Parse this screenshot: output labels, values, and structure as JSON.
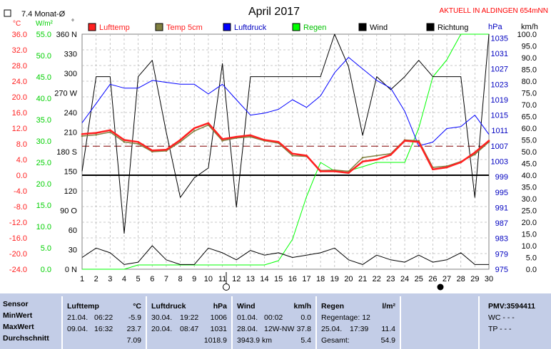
{
  "header": {
    "legend_title": "7.4 Monat-Ø",
    "title": "April 2017",
    "station_note": "AKTUELL IN ALDINGEN 654mNN",
    "unit_temp": "°C",
    "unit_rad": "W/m²",
    "unit_deg": "°",
    "unit_hpa": "hPa",
    "unit_kmh": "km/h"
  },
  "legend": [
    {
      "label": "Lufttemp",
      "color": "#ff2020"
    },
    {
      "label": "Temp 5cm",
      "color": "#808040"
    },
    {
      "label": "Luftdruck",
      "color": "#0000ff"
    },
    {
      "label": "Regen",
      "color": "#00ff00"
    },
    {
      "label": "Wind",
      "color": "#000000"
    },
    {
      "label": "Richtung",
      "color": "#000000"
    }
  ],
  "axes": {
    "temp_ticks": [
      "36.0",
      "32.0",
      "28.0",
      "24.0",
      "20.0",
      "16.0",
      "12.0",
      "8.0",
      "4.0",
      "0.0",
      "-4.0",
      "-8.0",
      "-12.0",
      "-16.0",
      "-20.0",
      "-24.0"
    ],
    "rain_ticks": [
      "55.0",
      "50.0",
      "45.0",
      "40.0",
      "35.0",
      "30.0",
      "25.0",
      "20.0",
      "15.0",
      "10.0",
      "5.0",
      "0.0"
    ],
    "dir_ticks": [
      "360 N",
      "330",
      "300",
      "270 W",
      "240",
      "210",
      "180 S",
      "150",
      "120",
      "90 O",
      "60",
      "30",
      "0 N"
    ],
    "hpa_ticks": [
      "1035",
      "1031",
      "1027",
      "1023",
      "1019",
      "1015",
      "1011",
      "1007",
      "1003",
      "999",
      "995",
      "991",
      "987",
      "983",
      "979",
      "975"
    ],
    "kmh_ticks": [
      "100.0",
      "95.0",
      "90.0",
      "85.0",
      "80.0",
      "75.0",
      "70.0",
      "65.0",
      "60.0",
      "55.0",
      "50.0",
      "45.0",
      "40.0",
      "35.0",
      "30.0",
      "25.0",
      "20.0",
      "15.0",
      "10.0",
      "5.0",
      "0.0"
    ],
    "days": [
      "1",
      "2",
      "3",
      "4",
      "5",
      "6",
      "7",
      "8",
      "9",
      "10",
      "11",
      "12",
      "13",
      "14",
      "15",
      "16",
      "17",
      "18",
      "19",
      "20",
      "21",
      "22",
      "23",
      "24",
      "25",
      "26",
      "27",
      "28",
      "29",
      "30"
    ]
  },
  "chart_data": {
    "type": "line",
    "title": "April 2017",
    "x": [
      1,
      2,
      3,
      4,
      5,
      6,
      7,
      8,
      9,
      10,
      11,
      12,
      13,
      14,
      15,
      16,
      17,
      18,
      19,
      20,
      21,
      22,
      23,
      24,
      25,
      26,
      27,
      28,
      29,
      30
    ],
    "temp_range": [
      -24,
      36
    ],
    "pressure_range": [
      975,
      1036
    ],
    "rain_range": [
      0,
      55
    ],
    "direction_range": [
      0,
      360
    ],
    "wind_range": [
      0,
      100
    ],
    "month_avg_temp": 7.4,
    "series": [
      {
        "name": "Lufttemp",
        "axis": "temp",
        "color": "#ff2020",
        "values": [
          10.5,
          10.8,
          11.5,
          9.0,
          8.5,
          6.3,
          6.5,
          9.0,
          12.0,
          13.3,
          9.2,
          9.8,
          10.2,
          9.0,
          8.5,
          5.5,
          5.0,
          1.0,
          1.0,
          0.6,
          3.5,
          4.0,
          5.2,
          8.8,
          8.5,
          1.5,
          2.0,
          3.3,
          5.8,
          8.8
        ]
      },
      {
        "name": "Temp 5cm",
        "axis": "temp",
        "color": "#808040",
        "values": [
          10.0,
          10.3,
          11.0,
          8.5,
          8.0,
          6.0,
          6.2,
          8.5,
          11.3,
          12.8,
          8.8,
          9.5,
          9.8,
          8.8,
          8.2,
          5.0,
          4.8,
          1.2,
          1.3,
          1.0,
          4.5,
          5.0,
          5.5,
          9.0,
          8.8,
          2.0,
          2.3,
          3.5,
          5.3,
          8.5
        ]
      },
      {
        "name": "Luftdruck",
        "axis": "pressure",
        "color": "#0000ff",
        "values": [
          1013,
          1018,
          1023,
          1022,
          1022,
          1024,
          1023.5,
          1023,
          1023,
          1020.5,
          1023,
          1019,
          1015,
          1015.5,
          1016.5,
          1019,
          1017,
          1020,
          1026,
          1030,
          1027,
          1024,
          1022,
          1016,
          1007,
          1008,
          1011.5,
          1012,
          1015,
          1010
        ]
      },
      {
        "name": "Regen",
        "axis": "rain",
        "color": "#00ff00",
        "values": [
          0,
          0,
          0,
          0,
          1,
          1,
          1,
          1,
          1,
          1,
          1,
          1,
          1,
          1,
          2,
          7,
          17,
          25,
          23,
          23,
          24,
          25,
          25,
          25,
          33,
          45,
          49,
          55,
          55,
          55
        ]
      },
      {
        "name": "Wind",
        "axis": "wind",
        "color": "#000000",
        "values": [
          5,
          9,
          7,
          2,
          3,
          10,
          4,
          2,
          2,
          9,
          7,
          4,
          8,
          6,
          7,
          5,
          6,
          7,
          9,
          4,
          2,
          6,
          4,
          3,
          6,
          3,
          4,
          7,
          2,
          2
        ]
      },
      {
        "name": "Richtung",
        "axis": "direction",
        "color": "#000000",
        "values": [
          150,
          295,
          295,
          55,
          295,
          320,
          210,
          110,
          140,
          155,
          315,
          95,
          295,
          295,
          295,
          295,
          295,
          295,
          360,
          310,
          205,
          295,
          275,
          295,
          320,
          295,
          295,
          295,
          110,
          360
        ]
      }
    ]
  },
  "table": {
    "sensor": {
      "head": "Sensor",
      "rows": [
        "MinWert",
        "MaxWert",
        "Durchschnitt"
      ]
    },
    "lufttemp": {
      "head": "Lufttemp",
      "unit": "°C",
      "rows": [
        [
          "21.04.",
          "06:22",
          "-5.9"
        ],
        [
          "09.04.",
          "16:32",
          "23.7"
        ],
        [
          "",
          "",
          "7.09"
        ]
      ]
    },
    "luftdruck": {
      "head": "Luftdruck",
      "unit": "hPa",
      "rows": [
        [
          "30.04.",
          "19:22",
          "1006"
        ],
        [
          "20.04.",
          "08:47",
          "1031"
        ],
        [
          "",
          "",
          "1018.9"
        ]
      ]
    },
    "wind": {
      "head": "Wind",
      "unit": "km/h",
      "rows": [
        [
          "01.04.",
          "00:02",
          "0.0"
        ],
        [
          "28.04.",
          "12W-NW",
          "37.8"
        ],
        [
          "3943.9 km",
          "",
          "5.4"
        ]
      ]
    },
    "regen": {
      "head": "Regen",
      "unit": "l/m²",
      "rows": [
        [
          "Regentage: 12",
          "",
          ""
        ],
        [
          "25.04.",
          "17:39",
          "11.4"
        ],
        [
          "Gesamt:",
          "",
          "54.9"
        ]
      ]
    },
    "pmv": {
      "head": "PMV:3594411",
      "wc": "WC - - -",
      "tp": "TP - - -"
    }
  }
}
